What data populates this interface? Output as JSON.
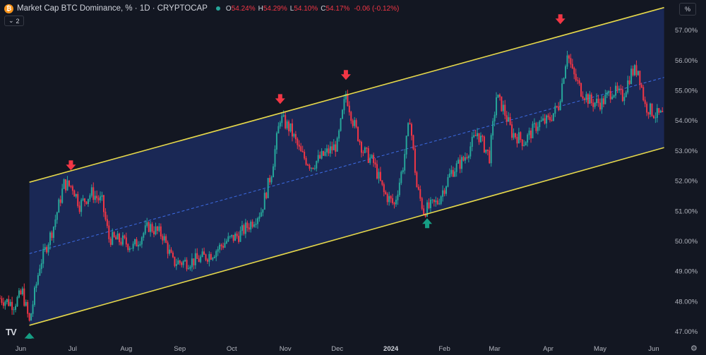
{
  "header": {
    "coin_glyph": "₿",
    "title": "Market Cap BTC Dominance, % · 1D · CRYPTOCAP",
    "ohlc": [
      {
        "k": "O",
        "v": "54.24%"
      },
      {
        "k": "H",
        "v": "54.29%"
      },
      {
        "k": "L",
        "v": "54.10%"
      },
      {
        "k": "C",
        "v": "54.17%"
      }
    ],
    "change": "-0.06 (-0.12%)",
    "indicator_pill": "2",
    "scale_button": "%"
  },
  "logo": "TV",
  "colors": {
    "background": "#131722",
    "channel_fill": "#1c2b5e",
    "channel_line": "#e6d84a",
    "midline": "#3d6ce6",
    "up": "#26a69a",
    "down": "#f23645",
    "marker_down": "#f23645",
    "marker_up": "#169e84",
    "axis_text": "#b2b5be"
  },
  "chart_data": {
    "type": "ohlc",
    "y_axis": {
      "ticks": [
        "57.00%",
        "56.00%",
        "55.00%",
        "54.00%",
        "53.00%",
        "52.00%",
        "51.00%",
        "50.00%",
        "49.00%",
        "48.00%",
        "47.00%"
      ],
      "range": [
        46.8,
        58.0
      ]
    },
    "x_axis": {
      "ticks": [
        "Jun",
        "Jul",
        "Aug",
        "Sep",
        "Oct",
        "Nov",
        "Dec",
        "2024",
        "Feb",
        "Mar",
        "Apr",
        "May",
        "Jun"
      ],
      "bold_tick": "2024",
      "range": [
        "2023-05-20",
        "2024-06-10"
      ]
    },
    "channel": {
      "upper": [
        [
          "2023-06-06",
          51.95
        ],
        [
          "2024-06-07",
          57.75
        ]
      ],
      "lower": [
        [
          "2023-06-06",
          47.2
        ],
        [
          "2024-06-07",
          53.1
        ]
      ],
      "mid": [
        [
          "2023-06-06",
          49.58
        ],
        [
          "2024-06-07",
          55.43
        ]
      ]
    },
    "price_path": [
      [
        "2023-05-20",
        48.1
      ],
      [
        "2023-05-28",
        47.9
      ],
      [
        "2023-06-02",
        48.3
      ],
      [
        "2023-06-06",
        47.3
      ],
      [
        "2023-06-12",
        49.2
      ],
      [
        "2023-06-20",
        50.5
      ],
      [
        "2023-06-26",
        51.9
      ],
      [
        "2023-07-01",
        51.8
      ],
      [
        "2023-07-05",
        51.2
      ],
      [
        "2023-07-12",
        51.6
      ],
      [
        "2023-07-18",
        51.3
      ],
      [
        "2023-07-22",
        50.1
      ],
      [
        "2023-07-30",
        50.0
      ],
      [
        "2023-08-05",
        49.8
      ],
      [
        "2023-08-14",
        50.5
      ],
      [
        "2023-08-22",
        50.2
      ],
      [
        "2023-08-28",
        49.3
      ],
      [
        "2023-09-05",
        49.3
      ],
      [
        "2023-09-12",
        49.4
      ],
      [
        "2023-09-20",
        49.6
      ],
      [
        "2023-09-28",
        50.0
      ],
      [
        "2023-10-05",
        50.2
      ],
      [
        "2023-10-12",
        50.6
      ],
      [
        "2023-10-18",
        51.0
      ],
      [
        "2023-10-24",
        52.3
      ],
      [
        "2023-10-29",
        54.1
      ],
      [
        "2023-11-04",
        53.7
      ],
      [
        "2023-11-10",
        52.9
      ],
      [
        "2023-11-16",
        52.5
      ],
      [
        "2023-11-24",
        52.9
      ],
      [
        "2023-12-01",
        53.2
      ],
      [
        "2023-12-06",
        54.9
      ],
      [
        "2023-12-10",
        54.0
      ],
      [
        "2023-12-16",
        53.0
      ],
      [
        "2023-12-22",
        52.6
      ],
      [
        "2023-12-28",
        51.6
      ],
      [
        "2024-01-03",
        51.2
      ],
      [
        "2024-01-08",
        52.5
      ],
      [
        "2024-01-12",
        54.1
      ],
      [
        "2024-01-16",
        51.8
      ],
      [
        "2024-01-20",
        51.0
      ],
      [
        "2024-01-28",
        51.3
      ],
      [
        "2024-02-05",
        52.3
      ],
      [
        "2024-02-12",
        52.7
      ],
      [
        "2024-02-20",
        53.6
      ],
      [
        "2024-02-27",
        52.8
      ],
      [
        "2024-03-02",
        54.8
      ],
      [
        "2024-03-06",
        54.4
      ],
      [
        "2024-03-11",
        53.6
      ],
      [
        "2024-03-18",
        53.3
      ],
      [
        "2024-03-26",
        53.9
      ],
      [
        "2024-04-01",
        54.0
      ],
      [
        "2024-04-07",
        54.5
      ],
      [
        "2024-04-12",
        56.3
      ],
      [
        "2024-04-15",
        55.6
      ],
      [
        "2024-04-20",
        55.0
      ],
      [
        "2024-04-26",
        54.6
      ],
      [
        "2024-05-02",
        54.6
      ],
      [
        "2024-05-08",
        55.0
      ],
      [
        "2024-05-14",
        54.8
      ],
      [
        "2024-05-19",
        55.6
      ],
      [
        "2024-05-23",
        55.7
      ],
      [
        "2024-05-27",
        54.5
      ],
      [
        "2024-06-02",
        54.2
      ],
      [
        "2024-06-06",
        54.17
      ]
    ],
    "markers": [
      {
        "date": "2023-06-06",
        "value": 47.0,
        "dir": "up"
      },
      {
        "date": "2023-06-30",
        "value": 52.3,
        "dir": "down"
      },
      {
        "date": "2023-10-29",
        "value": 54.5,
        "dir": "down"
      },
      {
        "date": "2023-12-06",
        "value": 55.3,
        "dir": "down"
      },
      {
        "date": "2024-01-22",
        "value": 50.8,
        "dir": "up"
      },
      {
        "date": "2024-04-08",
        "value": 57.15,
        "dir": "down"
      }
    ]
  }
}
